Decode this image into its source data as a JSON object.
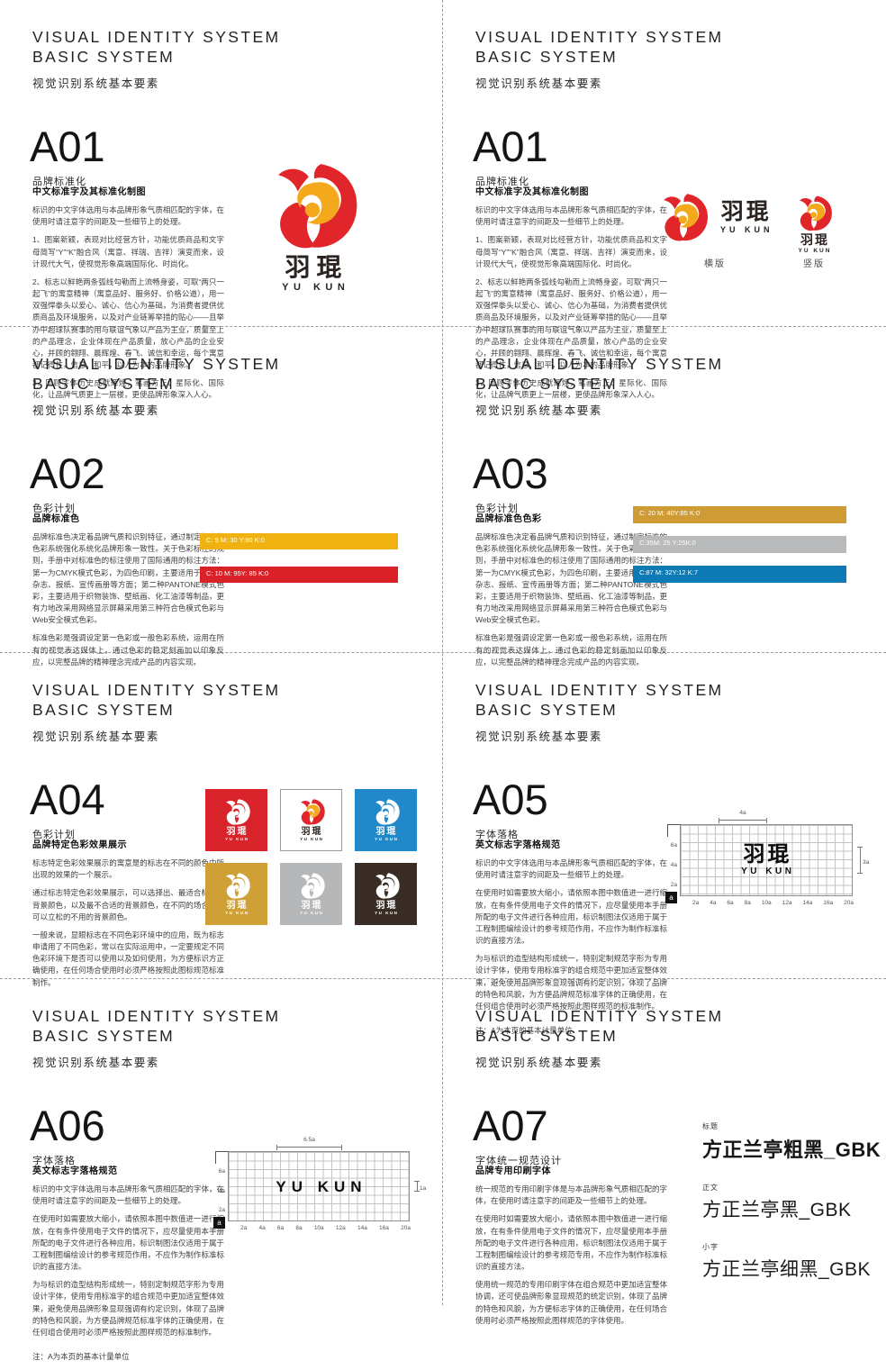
{
  "page": {
    "header": {
      "line1": "VISUAL IDENTITY SYSTEM",
      "line2": "BASIC SYSTEM",
      "subtitle_cn": "视觉识别系统基本要素"
    }
  },
  "brand": {
    "name_cn": "羽琨",
    "name_en": "YU KUN",
    "colors": {
      "logo_red": "#e0262b",
      "logo_yellow": "#f4a91c",
      "text_dark": "#2b2320"
    }
  },
  "a01": {
    "code": "A01",
    "subtitle": "品牌标准化",
    "body_title": "中文标准字及其标准化制图",
    "paras": [
      "标识的中文字体选用与本品牌形象气质相匹配的字体，在使用时请注意字的间距及一些细节上的处理。",
      "1、图案新颖，表现对比经营方针，功能优质商品和文字母简写“Y”“K”融合风（寓意、祥瑞、吉祥）演变而来，设计现代大气，使视觉形象高端国际化、时尚化。",
      "2、标志以鲜艳两条弧线勾勒而上流畅身姿，可取“两只一起飞”的寓意精神（寓意品好、服务好、价格公道），用一双强悍拳头以爱心、诚心、信心为基础，为消费者提供优质商品及环境服务，以及对产业链筹举措的贴心——且举办中超球队赛事的用与联谊气象以产品为主业，质量至上的产品理念，企业体现在产品质量，放心产品的企业安心，并顾的翱翔、晨辉煌、春飞、诚信和幸运，每个寓意都记得住，信息、和平，以人为本的品牌形象。",
      "3、回顾字体历史成就辉煌，笔画方正、星际化、国际化，让品牌气质更上一层楼，更使品牌形象深入人心。"
    ],
    "labels": {
      "horizontal": "横版",
      "vertical": "竖版"
    }
  },
  "a02": {
    "code": "A02",
    "subtitle": "色彩计划",
    "body_title": "品牌标准色",
    "paras": [
      "品牌标准色决定着品牌气质和识别特征，通过制定标准的色彩系统强化系统化品牌形象一致性。关于色彩标注的规则，手册中对标准色的标注使用了国际通用的标注方法：第一为CMYK模式色彩，为四色印刷，主要适用于期刊、杂志、报纸、宣传画册等方面；第二种PANTONE模式色彩，主要适用于织物装饰、壁纸画、化工油漆等制品，更有力地改采用网络显示屏幕采用第三种符合色模式色彩与Web安全模式色彩。",
      "标准色彩是强调设定第一色彩或一般色彩系统，运用在所有的视觉表达媒体上，通过色彩的稳定刻画加以印象反应，以完整品牌的精神理念完成产品的内容实现。"
    ],
    "swatches": [
      {
        "label": "C: 5  M: 30 Y:90 K:0",
        "color": "#efb211"
      },
      {
        "label": "C: 10 M: 95Y: 85 K:0",
        "color": "#da2128"
      }
    ]
  },
  "a03": {
    "code": "A03",
    "subtitle": "色彩计划",
    "body_title": "品牌标准色色彩",
    "paras": [
      "品牌标准色决定着品牌气质和识别特征，通过制定标准的色彩系统强化系统化品牌形象一致性。关于色彩标注的规则，手册中对标准色的标注使用了国际通用的标注方法：第一为CMYK模式色彩，为四色印刷，主要适用于期刊、杂志、报纸、宣传画册等方面；第二种PANTONE模式色彩，主要适用于织物装饰、壁纸画、化工油漆等制品，更有力地改采用网络显示屏幕采用第三种符合色模式色彩与Web安全模式色彩。",
      "标准色彩是强调设定第一色彩或一般色彩系统，运用在所有的视觉表达媒体上，通过色彩的稳定刻画加以印象反应，以完整品牌的精神理念完成产品的内容实现。"
    ],
    "swatches": [
      {
        "label": "C: 20  M: 40Y:85 K:0",
        "color": "#cf9b35"
      },
      {
        "label": "C:35M: 25 Y:25K:0",
        "color": "#b8babc"
      },
      {
        "label": "C:87 M: 32Y:12 K:7",
        "color": "#0d7ab5"
      }
    ]
  },
  "a04": {
    "code": "A04",
    "subtitle": "色彩计划",
    "body_title": "品牌特定色彩效果展示",
    "paras": [
      "标志特定色彩效果展示的寓意是的标志在不同的颜色中所出现的效果的一个展示。",
      "通过标志特定色彩效果展示，可以选择出、最适合标志的背景颜色，以及最不合适的背景颜色，在不同的场合中来可以立松的不用的背景颜色。",
      "一般来说，显眼标志在不同色彩环境中的应用，既为标志申请用了不同色彩，常以在实际运用中，一定要规定不同色彩环境下是否可以使用以及如何使用，为方便标识方正确使用，在任何场合使用时必须严格按照此图标规范标准制作。"
    ],
    "squares": [
      {
        "bg": "#d8232a",
        "style": "white"
      },
      {
        "bg": "#ffffff",
        "style": "color"
      },
      {
        "bg": "#2188c9",
        "style": "white"
      },
      {
        "bg": "#cfa035",
        "style": "white"
      },
      {
        "bg": "#b5b7b9",
        "style": "white"
      },
      {
        "bg": "#382c25",
        "style": "white"
      }
    ]
  },
  "a05": {
    "code": "A05",
    "subtitle": "字体落格",
    "body_title": "英文标志字落格规范",
    "paras": [
      "标识的中文字体选用与本品牌形象气质相匹配的字体，在使用时请注意字的间距及一些细节上的处理。",
      "在使用时如需要放大缩小，请依照本图中数值进一进行缩放，在有条件使用电子文件的情况下，应尽量使用本手册所配的电子文件进行各种应用，标识制图法仅适用于属于工程制图编绘设计的参考规范作用，不应作为制作标准标识的直接方法。",
      "为与标识的造型结构形成统一，特别定制规范字形为专用设计字体，使用专用标准字的组合规范中更加适宜整体效果，避免使用品牌形象显现强调有约定识别，体现了品牌的特色和风貌，为方便品牌规范标准字体的正确使用，在任何组合使用时必须严格按照此图样规范的标准制作。"
    ],
    "note": "注：A为本页的基本计量单位",
    "grid": {
      "top": "4a",
      "right": "3a",
      "left_ticks": [
        "6a",
        "4a",
        "2a"
      ],
      "bottom_ticks": [
        "2a",
        "4a",
        "6a",
        "8a",
        "10a",
        "12a",
        "14a",
        "16a",
        "20a"
      ],
      "unit": "a"
    }
  },
  "a06": {
    "code": "A06",
    "subtitle": "字体落格",
    "body_title": "英文标志字落格规范",
    "paras": [
      "标识的中文字体选用与本品牌形象气质相匹配的字体，在使用时请注意字的间距及一些细节上的处理。",
      "在使用时如需要放大缩小，请依照本图中数值进一进行缩放，在有条件使用电子文件的情况下，应尽量使用本手册所配的电子文件进行各种应用，标识制图法仅适用于属于工程制图编绘设计的参考规范作用，不应作为制作标准标识的直接方法。",
      "为与标识的造型结构形成统一，特别定制规范字形为专用设计字体，使用专用标准字的组合规范中更加适宜整体效果，避免使用品牌形象显现强调有约定识别，体现了品牌的特色和风貌，为方便品牌规范标准字体的正确使用，在任何组合使用时必须严格按照此图样规范的标准制作。"
    ],
    "note": "注：A为本页的基本计量单位",
    "grid": {
      "top": "6.5a",
      "right": "1a",
      "left_ticks": [
        "6a",
        "4a",
        "2a"
      ],
      "bottom_ticks": [
        "2a",
        "4a",
        "6a",
        "8a",
        "10a",
        "12a",
        "14a",
        "16a",
        "20a"
      ],
      "unit": "a"
    }
  },
  "a07": {
    "code": "A07",
    "subtitle": "字体统一规范设计",
    "body_title": "品牌专用印刷字体",
    "paras": [
      "统一规范的专用印刷字体是与本品牌形象气质相匹配的字体，在使用时请注意字的间距及一些细节上的处理。",
      "在使用时如需要放大缩小，请依照本图中数值进一进行缩放，在有条件使用电子文件的情况下，应尽量使用本手册所配的电子文件进行各种应用，标识制图法仅适用于属于工程制图编绘设计的参考规范专用，不应作为制作标准标识的直接方法。",
      "使用统一规范的专用印刷字体在组合规范中更加适宜整体协调，还可使品牌形象显现规范的统定识别，体现了品牌的特色和风貌，为方便标志字体的正确使用，在任何场合使用时必须严格按照此图样规范的字体使用。"
    ],
    "fonts": [
      {
        "label": "标题",
        "name": "方正兰亭粗黑_GBK"
      },
      {
        "label": "正文",
        "name": "方正兰亭黑_GBK"
      },
      {
        "label": "小字",
        "name": "方正兰亭细黑_GBK"
      }
    ]
  }
}
